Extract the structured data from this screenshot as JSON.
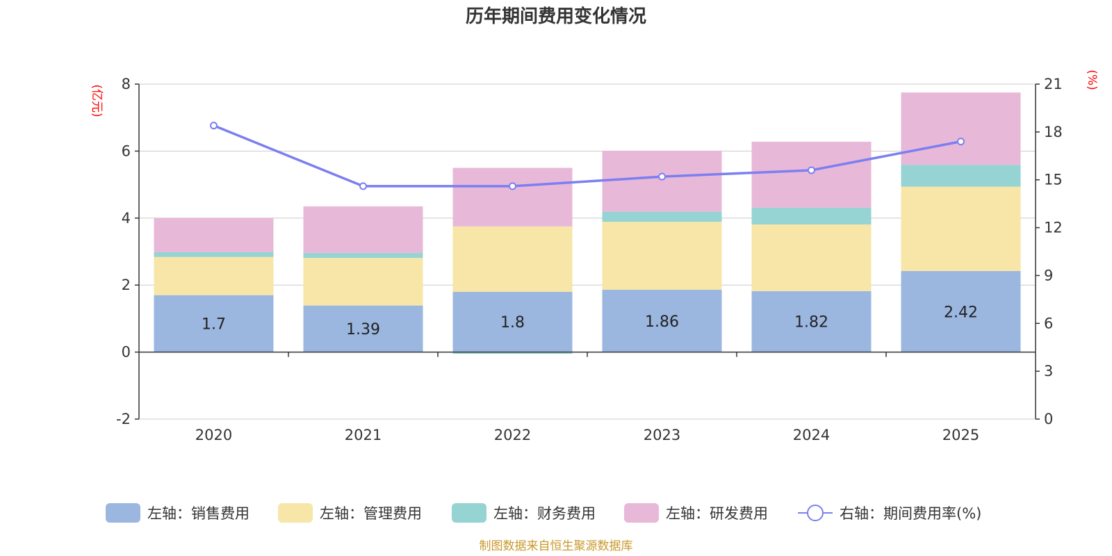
{
  "chart_data": {
    "type": "bar",
    "title": "历年期间费用变化情况",
    "categories": [
      "2020",
      "2021",
      "2022",
      "2023",
      "2024",
      "2025"
    ],
    "left_axis": {
      "unit": "(亿元)",
      "ylim": [
        -2,
        8
      ],
      "ticks": [
        -2,
        0,
        2,
        4,
        6,
        8
      ]
    },
    "right_axis": {
      "unit": "(%)",
      "ylim": [
        0,
        21
      ],
      "ticks": [
        0,
        3,
        6,
        9,
        12,
        15,
        18,
        21
      ]
    },
    "series": [
      {
        "name": "左轴：销售费用",
        "kind": "bar",
        "stack": true,
        "color": "#9bb7e0",
        "values": [
          1.7,
          1.39,
          1.8,
          1.86,
          1.82,
          2.42
        ],
        "labels": [
          "1.7",
          "1.39",
          "1.8",
          "1.86",
          "1.82",
          "2.42"
        ]
      },
      {
        "name": "左轴：管理费用",
        "kind": "bar",
        "stack": true,
        "color": "#f7e6a8",
        "values": [
          1.14,
          1.42,
          1.95,
          2.03,
          1.99,
          2.52
        ]
      },
      {
        "name": "左轴：财务费用",
        "kind": "bar",
        "stack": true,
        "color": "#96d3d3",
        "values": [
          0.14,
          0.15,
          -0.05,
          0.3,
          0.5,
          0.65
        ]
      },
      {
        "name": "左轴：研发费用",
        "kind": "bar",
        "stack": true,
        "color": "#e8b8d8",
        "values": [
          1.02,
          1.39,
          1.75,
          1.82,
          1.97,
          2.16
        ]
      },
      {
        "name": "右轴：期间费用率(%)",
        "kind": "line",
        "axis": "right",
        "color": "#7b7ff0",
        "values": [
          18.4,
          14.6,
          14.6,
          15.2,
          15.6,
          17.4
        ]
      }
    ],
    "source": "制图数据来自恒生聚源数据库"
  }
}
